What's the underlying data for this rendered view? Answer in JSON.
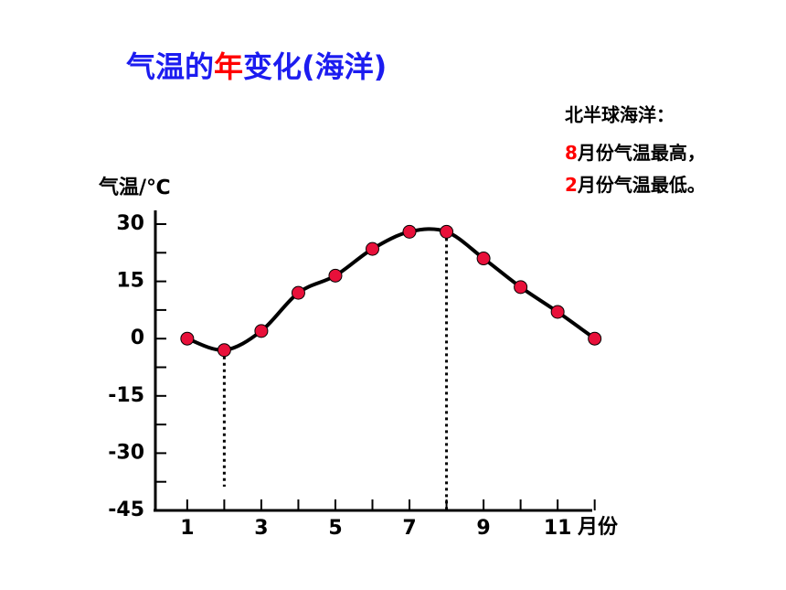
{
  "chart_data": {
    "type": "line",
    "title": {
      "before": "气温的",
      "highlight": "年",
      "after": "变化(海洋)"
    },
    "title_color": "#1c1cf0",
    "highlight_color": "#ff0000",
    "notes_title": "北半球海洋：",
    "notes": [
      {
        "highlight": "8",
        "text": "月份气温最高，"
      },
      {
        "highlight": "2",
        "text": "月份气温最低。"
      }
    ],
    "ylabel": "气温/℃",
    "xlabel": "月份",
    "x": [
      1,
      2,
      3,
      4,
      5,
      6,
      7,
      8,
      9,
      10,
      11,
      12
    ],
    "series": [
      {
        "color": "#e8103a",
        "values": [
          0,
          -3,
          2,
          12,
          16.5,
          23.5,
          28,
          28,
          21,
          13.5,
          7,
          0
        ]
      }
    ],
    "xlim": [
      0.14,
      11.86
    ],
    "xticks": [
      1,
      3,
      5,
      7,
      9,
      11
    ],
    "xminorticks": [
      2,
      4,
      6,
      8,
      10,
      12
    ],
    "ylim": [
      -45,
      30
    ],
    "yticks": [
      -45,
      -30,
      -15,
      0,
      15,
      30
    ],
    "yminorticks": [
      -37.5,
      -22.5,
      -7.5,
      7.5,
      22.5
    ],
    "guides": [
      1,
      7
    ]
  }
}
